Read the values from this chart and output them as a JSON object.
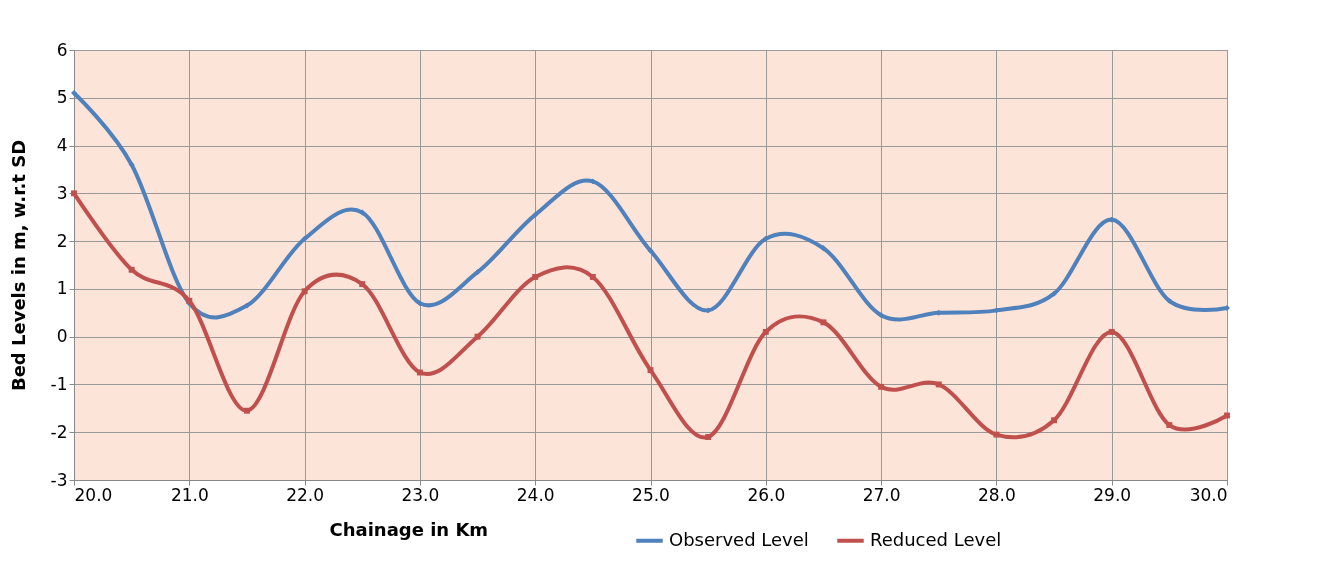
{
  "chart_data": {
    "type": "line",
    "xlabel": "Chainage in Km",
    "ylabel": "Bed Levels in m, w.r.t SD",
    "x": [
      20.0,
      20.5,
      21.0,
      21.5,
      22.0,
      22.5,
      23.0,
      23.5,
      24.0,
      24.5,
      25.0,
      25.5,
      26.0,
      26.5,
      27.0,
      27.5,
      28.0,
      28.5,
      29.0,
      29.5,
      30.0
    ],
    "series": [
      {
        "name": "Observed Level",
        "color": "#4f81bd",
        "marker": "diamond",
        "values": [
          5.1,
          3.6,
          0.7,
          0.65,
          2.05,
          2.6,
          0.7,
          1.35,
          2.55,
          3.25,
          1.8,
          0.55,
          2.05,
          1.85,
          0.45,
          0.5,
          0.55,
          0.9,
          2.45,
          0.75,
          0.6
        ]
      },
      {
        "name": "Reduced Level",
        "color": "#c0504d",
        "marker": "square",
        "values": [
          3.0,
          1.4,
          0.75,
          -1.55,
          0.95,
          1.1,
          -0.75,
          0.0,
          1.25,
          1.25,
          -0.7,
          -2.1,
          0.1,
          0.3,
          -1.05,
          -1.0,
          -2.05,
          -1.75,
          0.1,
          -1.85,
          -1.65
        ]
      }
    ],
    "xlim": [
      20.0,
      30.0
    ],
    "xticks": [
      {
        "value": 20,
        "label": "20.0"
      },
      {
        "value": 21,
        "label": "21.0"
      },
      {
        "value": 22,
        "label": "22.0"
      },
      {
        "value": 23,
        "label": "23.0"
      },
      {
        "value": 24,
        "label": "24.0"
      },
      {
        "value": 25,
        "label": "25.0"
      },
      {
        "value": 26,
        "label": "26.0"
      },
      {
        "value": 27,
        "label": "27.0"
      },
      {
        "value": 28,
        "label": "28.0"
      },
      {
        "value": 29,
        "label": "29.0"
      },
      {
        "value": 30,
        "label": "30.0"
      }
    ],
    "ylim": [
      -3,
      6
    ],
    "yticks": [
      -3,
      -2,
      -1,
      0,
      1,
      2,
      3,
      4,
      5,
      6
    ],
    "grid": true,
    "legend": "bottom",
    "line_style": "solid"
  }
}
